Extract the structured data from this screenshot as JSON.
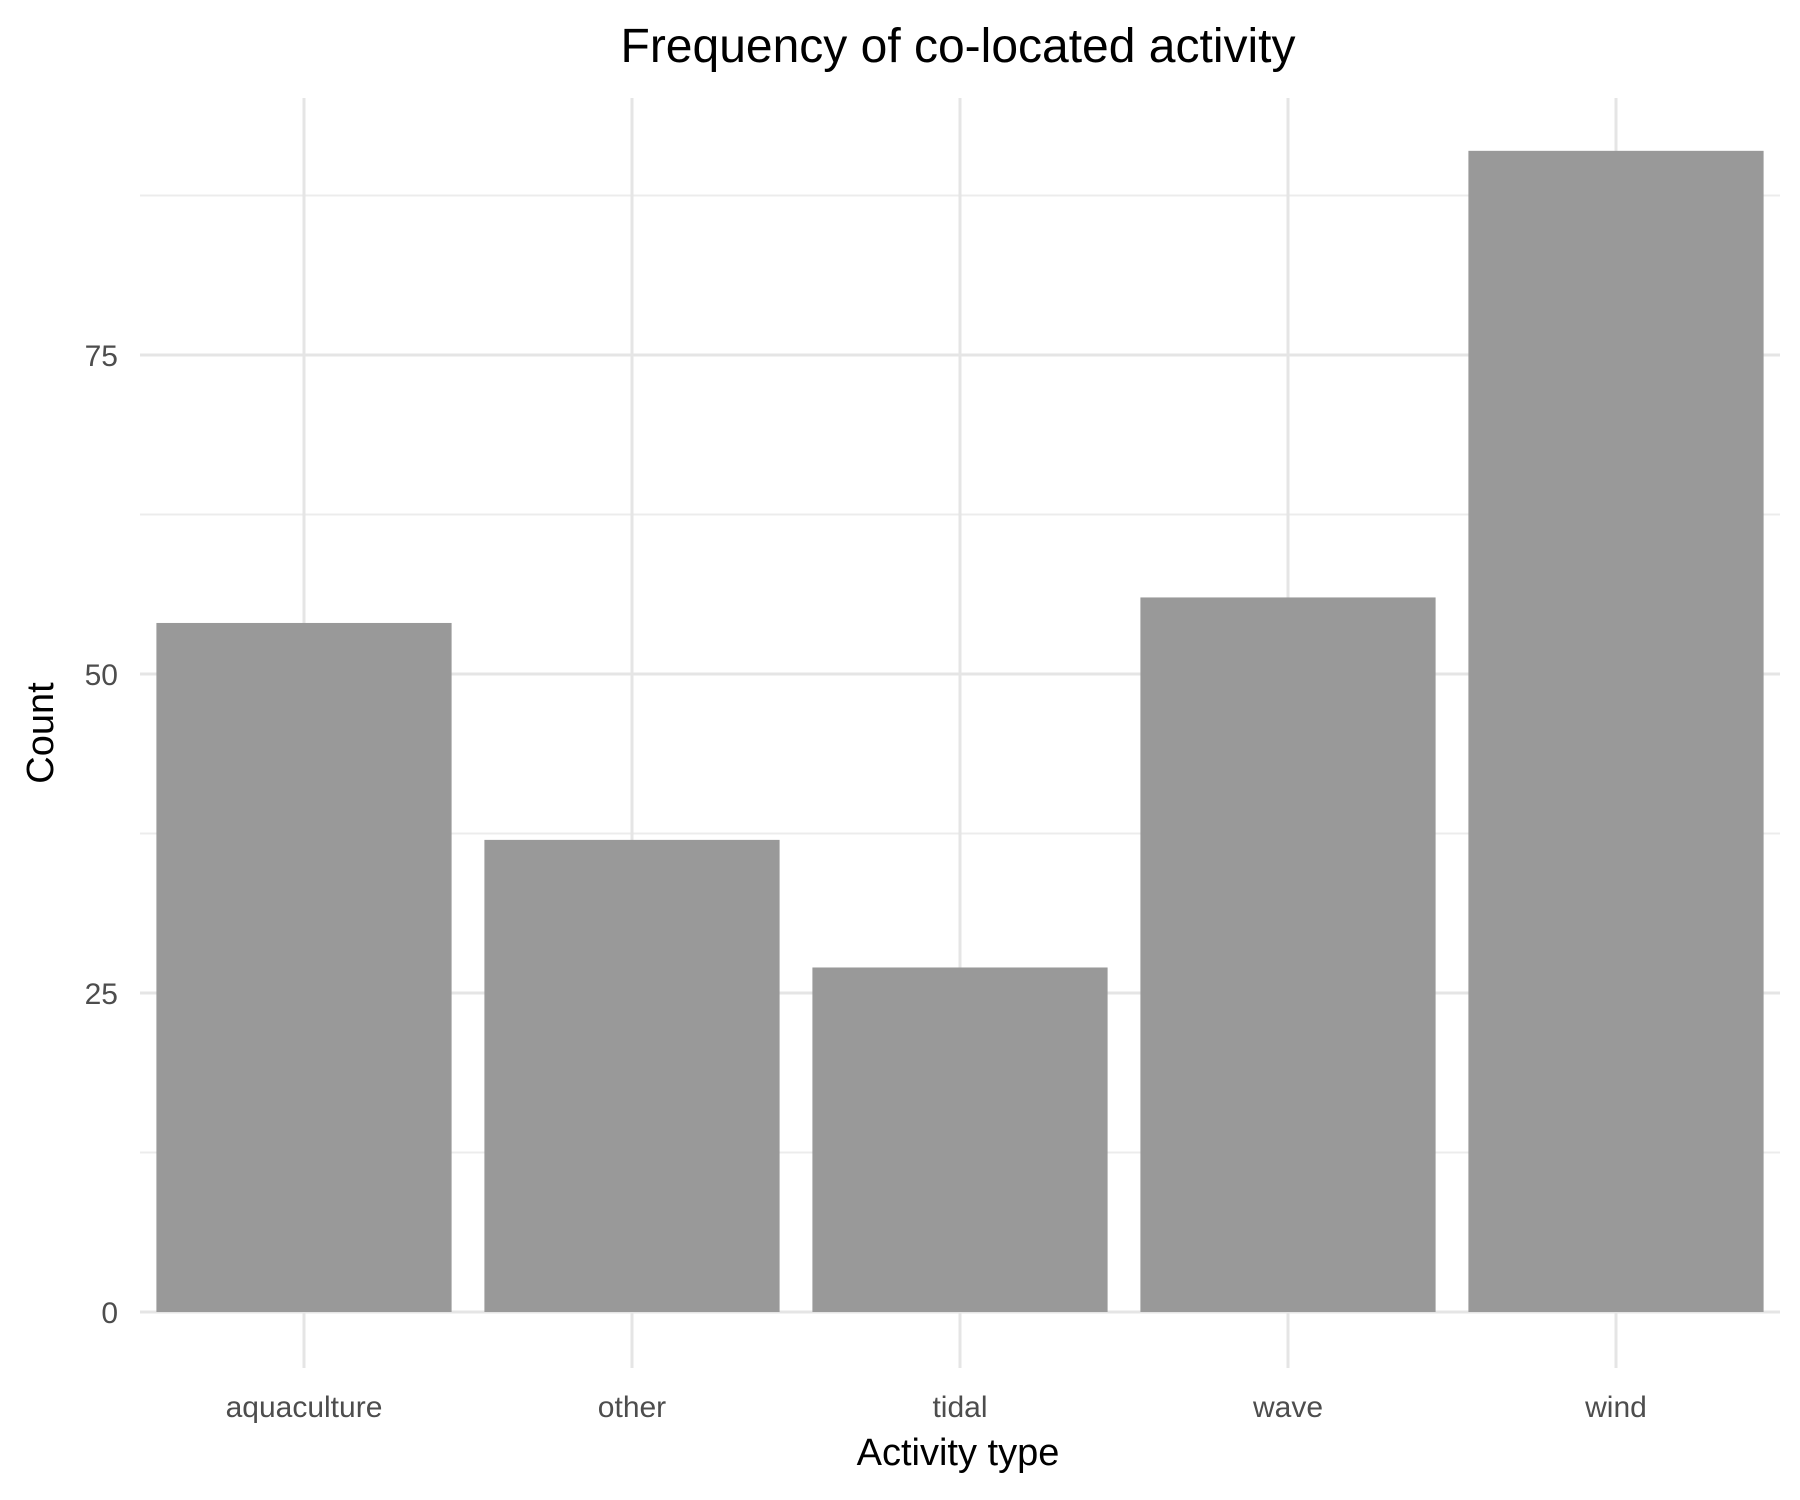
{
  "chart_data": {
    "type": "bar",
    "title": "Frequency of co-located activity",
    "xlabel": "Activity type",
    "ylabel": "Count",
    "categories": [
      "aquaculture",
      "other",
      "tidal",
      "wave",
      "wind"
    ],
    "values": [
      54,
      37,
      27,
      56,
      91
    ],
    "ylim": [
      0,
      95
    ],
    "yticks": [
      "0",
      "25",
      "50",
      "75"
    ],
    "grid": true,
    "legend": "none",
    "bar_color": "#999999"
  }
}
